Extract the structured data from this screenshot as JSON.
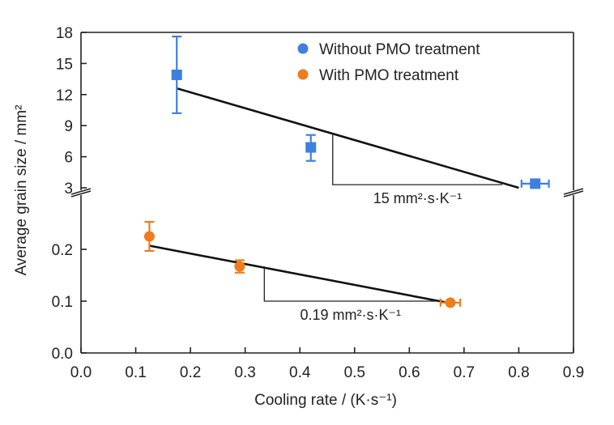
{
  "chart_data": {
    "type": "scatter",
    "xlabel": "Cooling rate / (K·s⁻¹)",
    "ylabel": "Average grain size / mm²",
    "xlim": [
      0.0,
      0.9
    ],
    "x_ticks": [
      "0.0",
      "0.1",
      "0.2",
      "0.3",
      "0.4",
      "0.5",
      "0.6",
      "0.7",
      "0.8",
      "0.9"
    ],
    "y_axis_broken": true,
    "upper_panel": {
      "ylim": [
        3,
        18
      ],
      "y_ticks": [
        "3",
        "6",
        "9",
        "12",
        "15",
        "18"
      ]
    },
    "lower_panel": {
      "ylim": [
        0.0,
        0.3
      ],
      "y_ticks": [
        "0.0",
        "0.1",
        "0.2"
      ]
    },
    "legend": {
      "position": "top-right"
    },
    "series": [
      {
        "name": "Without PMO treatment",
        "color": "#3f7fe0",
        "marker": "square",
        "panel": "upper",
        "points": [
          {
            "x": 0.175,
            "y": 13.9,
            "yerr": [
              3.7,
              3.7
            ]
          },
          {
            "x": 0.42,
            "y": 6.9,
            "yerr": [
              1.3,
              1.2
            ]
          },
          {
            "x": 0.83,
            "y": 3.4,
            "xerr": 0.025
          }
        ],
        "fit": {
          "x": [
            0.175,
            0.8
          ],
          "y": [
            12.6,
            3.0
          ]
        },
        "slope_label": "15 mm²·s·K⁻¹",
        "slope_triangle": {
          "x": [
            0.46,
            0.77
          ],
          "y": [
            8.3,
            3.3
          ]
        }
      },
      {
        "name": "With PMO treatment",
        "color": "#f07c1c",
        "marker": "circle",
        "panel": "lower",
        "points": [
          {
            "x": 0.125,
            "y": 0.225,
            "yerr": [
              0.028,
              0.028
            ]
          },
          {
            "x": 0.29,
            "y": 0.167,
            "yerr": [
              0.012,
              0.012
            ]
          },
          {
            "x": 0.675,
            "y": 0.097,
            "xerr": 0.018
          }
        ],
        "fit": {
          "x": [
            0.125,
            0.665
          ],
          "y": [
            0.207,
            0.098
          ]
        },
        "slope_label": "0.19 mm²·s·K⁻¹",
        "slope_triangle": {
          "x": [
            0.335,
            0.65
          ],
          "y": [
            0.167,
            0.1
          ]
        }
      }
    ]
  }
}
